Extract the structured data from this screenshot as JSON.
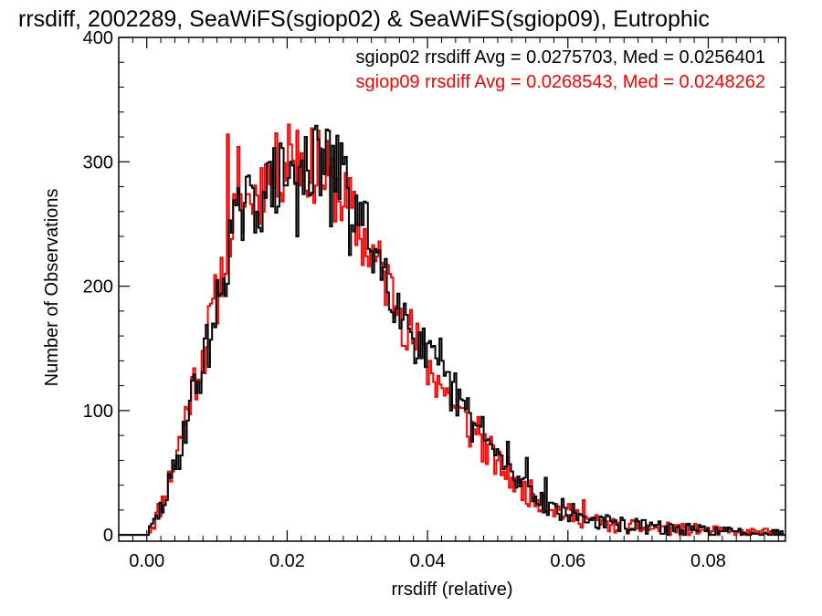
{
  "chart_data": {
    "type": "histogram",
    "title": "rrsdiff, 2002289, SeaWiFS(sgiop02) & SeaWiFS(sgiop09), Eutrophic",
    "xlabel": "rrsdiff (relative)",
    "ylabel": "Number of Observations",
    "xlim": [
      -0.004,
      0.091
    ],
    "ylim": [
      -5,
      400
    ],
    "x_ticks": [
      0.0,
      0.02,
      0.04,
      0.06,
      0.08
    ],
    "x_tick_labels": [
      "0.00",
      "0.02",
      "0.04",
      "0.06",
      "0.08"
    ],
    "y_ticks": [
      0,
      100,
      200,
      300,
      400
    ],
    "y_tick_labels": [
      "0",
      "100",
      "200",
      "300",
      "400"
    ],
    "bin_width": 0.0003,
    "x_start": 0.0,
    "annotations": [
      {
        "text": "sgiop02 rrsdiff Avg = 0.0275703, Med = 0.0256401",
        "color": "#000000"
      },
      {
        "text": "sgiop09 rrsdiff Avg = 0.0268543, Med = 0.0248262",
        "color": "#ff0000"
      }
    ],
    "series": [
      {
        "name": "sgiop02",
        "color": "#000000",
        "anchors": [
          [
            0.0,
            0
          ],
          [
            0.002,
            22
          ],
          [
            0.004,
            55
          ],
          [
            0.006,
            105
          ],
          [
            0.008,
            140
          ],
          [
            0.01,
            185
          ],
          [
            0.012,
            245
          ],
          [
            0.014,
            262
          ],
          [
            0.016,
            270
          ],
          [
            0.018,
            285
          ],
          [
            0.02,
            290
          ],
          [
            0.022,
            295
          ],
          [
            0.024,
            300
          ],
          [
            0.026,
            300
          ],
          [
            0.028,
            285
          ],
          [
            0.03,
            255
          ],
          [
            0.032,
            235
          ],
          [
            0.034,
            210
          ],
          [
            0.036,
            185
          ],
          [
            0.038,
            160
          ],
          [
            0.04,
            140
          ],
          [
            0.042,
            125
          ],
          [
            0.044,
            110
          ],
          [
            0.046,
            92
          ],
          [
            0.048,
            75
          ],
          [
            0.05,
            62
          ],
          [
            0.052,
            48
          ],
          [
            0.054,
            38
          ],
          [
            0.056,
            30
          ],
          [
            0.058,
            22
          ],
          [
            0.06,
            18
          ],
          [
            0.062,
            14
          ],
          [
            0.064,
            11
          ],
          [
            0.066,
            9
          ],
          [
            0.07,
            7
          ],
          [
            0.075,
            5
          ],
          [
            0.08,
            3
          ],
          [
            0.085,
            2
          ],
          [
            0.091,
            1
          ]
        ],
        "spikes": [
          [
            0.0125,
            265
          ],
          [
            0.0175,
            300
          ],
          [
            0.0225,
            320
          ],
          [
            0.0258,
            325
          ],
          [
            0.0275,
            315
          ],
          [
            0.0262,
            248
          ],
          [
            0.0214,
            240
          ],
          [
            0.0289,
            225
          ],
          [
            0.0342,
            195
          ],
          [
            0.0363,
            173
          ],
          [
            0.0418,
            158
          ],
          [
            0.0438,
            130
          ],
          [
            0.0476,
            95
          ],
          [
            0.0512,
            75
          ],
          [
            0.0539,
            62
          ],
          [
            0.0567,
            46
          ]
        ]
      },
      {
        "name": "sgiop09",
        "color": "#ff0000",
        "anchors": [
          [
            0.0,
            0
          ],
          [
            0.002,
            25
          ],
          [
            0.004,
            62
          ],
          [
            0.006,
            112
          ],
          [
            0.008,
            148
          ],
          [
            0.01,
            195
          ],
          [
            0.012,
            250
          ],
          [
            0.014,
            268
          ],
          [
            0.016,
            278
          ],
          [
            0.018,
            292
          ],
          [
            0.02,
            300
          ],
          [
            0.022,
            300
          ],
          [
            0.024,
            296
          ],
          [
            0.026,
            285
          ],
          [
            0.028,
            270
          ],
          [
            0.03,
            245
          ],
          [
            0.032,
            225
          ],
          [
            0.034,
            205
          ],
          [
            0.036,
            180
          ],
          [
            0.038,
            155
          ],
          [
            0.04,
            135
          ],
          [
            0.042,
            118
          ],
          [
            0.044,
            100
          ],
          [
            0.046,
            85
          ],
          [
            0.048,
            70
          ],
          [
            0.05,
            58
          ],
          [
            0.052,
            45
          ],
          [
            0.054,
            35
          ],
          [
            0.056,
            28
          ],
          [
            0.058,
            22
          ],
          [
            0.06,
            17
          ],
          [
            0.062,
            13
          ],
          [
            0.064,
            10
          ],
          [
            0.066,
            8
          ],
          [
            0.07,
            6
          ],
          [
            0.075,
            5
          ],
          [
            0.08,
            3
          ],
          [
            0.085,
            2
          ],
          [
            0.091,
            1
          ]
        ],
        "spikes": [
          [
            0.0115,
            322
          ],
          [
            0.0128,
            312
          ],
          [
            0.0168,
            298
          ],
          [
            0.0202,
            330
          ],
          [
            0.0214,
            325
          ],
          [
            0.0244,
            325
          ],
          [
            0.0232,
            283
          ],
          [
            0.0302,
            238
          ],
          [
            0.0359,
            182
          ],
          [
            0.0413,
            128
          ],
          [
            0.0432,
            104
          ],
          [
            0.0472,
            95
          ],
          [
            0.0499,
            60
          ],
          [
            0.0529,
            44
          ],
          [
            0.0565,
            32
          ],
          [
            0.0622,
            28
          ],
          [
            0.0633,
            14
          ]
        ]
      }
    ]
  }
}
